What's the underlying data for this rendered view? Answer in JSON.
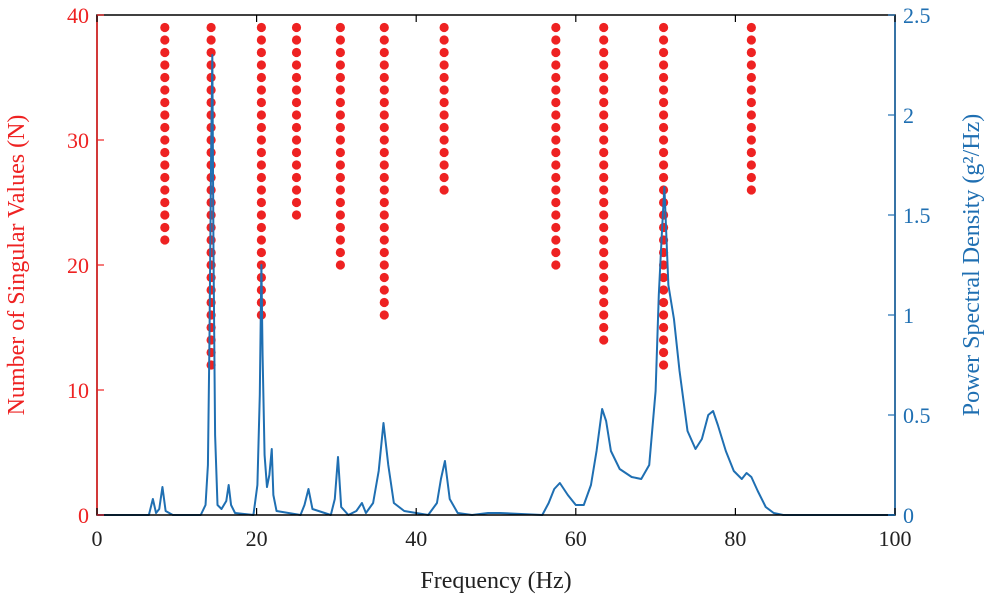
{
  "chart_data": {
    "type": "line",
    "title": "",
    "xlabel": "Frequency (Hz)",
    "ylabel_left": "Number of Singular Values (N)",
    "ylabel_right": "Power Spectral Density (g²/Hz)",
    "xlim": [
      0,
      100
    ],
    "ylim_left": [
      0,
      40
    ],
    "ylim_right": [
      0,
      2.5
    ],
    "x_ticks": [
      "0",
      "20",
      "40",
      "60",
      "80",
      "100"
    ],
    "y_left_ticks": [
      "0",
      "10",
      "20",
      "30",
      "40"
    ],
    "y_right_ticks": [
      "0",
      "0.5",
      "1",
      "1.5",
      "2",
      "2.5"
    ],
    "colors": {
      "singular": "#ee2222",
      "psd": "#1f6fb2",
      "axis": "#000000"
    },
    "singular_value_stacks": [
      {
        "frequency": 8.5,
        "n_min": 22
      },
      {
        "frequency": 14.3,
        "n_min": 12
      },
      {
        "frequency": 20.6,
        "n_min": 16
      },
      {
        "frequency": 25.0,
        "n_min": 24
      },
      {
        "frequency": 30.5,
        "n_min": 20
      },
      {
        "frequency": 36.0,
        "n_min": 16
      },
      {
        "frequency": 43.5,
        "n_min": 26
      },
      {
        "frequency": 57.5,
        "n_min": 20
      },
      {
        "frequency": 63.5,
        "n_min": 14
      },
      {
        "frequency": 71.0,
        "n_min": 12
      },
      {
        "frequency": 82.0,
        "n_min": 26
      }
    ],
    "n_max": 39,
    "psd_series": {
      "name": "Power Spectral Density",
      "points": [
        [
          0,
          0
        ],
        [
          6.5,
          0
        ],
        [
          7.0,
          0.08
        ],
        [
          7.4,
          0.01
        ],
        [
          7.8,
          0.03
        ],
        [
          8.2,
          0.14
        ],
        [
          8.6,
          0.02
        ],
        [
          9.5,
          0
        ],
        [
          13.0,
          0
        ],
        [
          13.6,
          0.05
        ],
        [
          13.9,
          0.25
        ],
        [
          14.1,
          0.9
        ],
        [
          14.3,
          1.8
        ],
        [
          14.45,
          2.3
        ],
        [
          14.6,
          1.3
        ],
        [
          14.8,
          0.4
        ],
        [
          15.1,
          0.05
        ],
        [
          15.6,
          0.03
        ],
        [
          16.2,
          0.07
        ],
        [
          16.5,
          0.15
        ],
        [
          16.8,
          0.05
        ],
        [
          17.3,
          0.01
        ],
        [
          19.6,
          0
        ],
        [
          20.1,
          0.15
        ],
        [
          20.4,
          0.6
        ],
        [
          20.6,
          1.25
        ],
        [
          20.75,
          0.8
        ],
        [
          21.0,
          0.3
        ],
        [
          21.3,
          0.14
        ],
        [
          21.6,
          0.2
        ],
        [
          21.9,
          0.33
        ],
        [
          22.1,
          0.1
        ],
        [
          22.5,
          0.02
        ],
        [
          25.5,
          0
        ],
        [
          26.0,
          0.05
        ],
        [
          26.5,
          0.13
        ],
        [
          27.0,
          0.03
        ],
        [
          29.3,
          0
        ],
        [
          29.8,
          0.08
        ],
        [
          30.2,
          0.29
        ],
        [
          30.6,
          0.04
        ],
        [
          31.5,
          0
        ],
        [
          32.5,
          0.02
        ],
        [
          33.2,
          0.06
        ],
        [
          33.7,
          0.01
        ],
        [
          34.6,
          0.06
        ],
        [
          35.3,
          0.22
        ],
        [
          35.9,
          0.46
        ],
        [
          36.5,
          0.25
        ],
        [
          37.2,
          0.06
        ],
        [
          38.5,
          0.02
        ],
        [
          41.5,
          0
        ],
        [
          42.6,
          0.06
        ],
        [
          43.1,
          0.18
        ],
        [
          43.6,
          0.27
        ],
        [
          44.2,
          0.08
        ],
        [
          45.2,
          0.01
        ],
        [
          47.0,
          0
        ],
        [
          49.0,
          0.01
        ],
        [
          50.5,
          0.01
        ],
        [
          55.8,
          0
        ],
        [
          56.6,
          0.06
        ],
        [
          57.3,
          0.13
        ],
        [
          58.0,
          0.16
        ],
        [
          59.0,
          0.1
        ],
        [
          60.0,
          0.05
        ],
        [
          61.0,
          0.05
        ],
        [
          61.9,
          0.15
        ],
        [
          62.6,
          0.32
        ],
        [
          63.3,
          0.53
        ],
        [
          63.8,
          0.47
        ],
        [
          64.4,
          0.32
        ],
        [
          65.5,
          0.23
        ],
        [
          67.0,
          0.19
        ],
        [
          68.2,
          0.18
        ],
        [
          69.2,
          0.25
        ],
        [
          70.0,
          0.62
        ],
        [
          70.4,
          1.1
        ],
        [
          70.8,
          1.42
        ],
        [
          71.1,
          1.64
        ],
        [
          71.6,
          1.15
        ],
        [
          72.3,
          0.98
        ],
        [
          73.0,
          0.72
        ],
        [
          74.0,
          0.42
        ],
        [
          75.0,
          0.33
        ],
        [
          75.8,
          0.38
        ],
        [
          76.6,
          0.5
        ],
        [
          77.2,
          0.52
        ],
        [
          77.8,
          0.45
        ],
        [
          78.8,
          0.32
        ],
        [
          79.8,
          0.22
        ],
        [
          80.8,
          0.18
        ],
        [
          81.4,
          0.21
        ],
        [
          82.0,
          0.19
        ],
        [
          82.8,
          0.12
        ],
        [
          83.8,
          0.04
        ],
        [
          84.8,
          0.01
        ],
        [
          86.0,
          0
        ],
        [
          100,
          0
        ]
      ]
    }
  }
}
